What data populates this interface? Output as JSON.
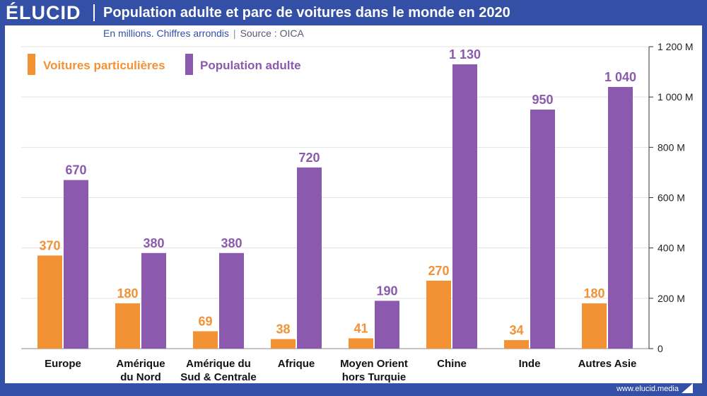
{
  "brand": {
    "logo": "ÉLUCID",
    "url": "www.elucid.media"
  },
  "header": {
    "title": "Population adulte et parc de voitures dans le monde en 2020",
    "subtitle": "En millions. Chiffres arrondis",
    "separator": "|",
    "source": "Source : OICA"
  },
  "colors": {
    "cars": "#f39234",
    "population": "#8b59ad",
    "brand": "#3350a6"
  },
  "chart_data": {
    "type": "bar",
    "title": "Population adulte et parc de voitures dans le monde en 2020",
    "xlabel": "",
    "ylabel": "",
    "ylim": [
      0,
      1200
    ],
    "yticks": [
      0,
      200,
      400,
      600,
      800,
      1000,
      1200
    ],
    "ytick_labels": [
      "0",
      "200 M",
      "400 M",
      "600 M",
      "800 M",
      "1 000 M",
      "1 200 M"
    ],
    "grid": true,
    "legend_position": "top-left",
    "categories": [
      [
        "Europe"
      ],
      [
        "Amérique",
        "du Nord"
      ],
      [
        "Amérique du",
        "Sud & Centrale"
      ],
      [
        "Afrique"
      ],
      [
        "Moyen Orient",
        "hors Turquie"
      ],
      [
        "Chine"
      ],
      [
        "Inde"
      ],
      [
        "Autres Asie"
      ]
    ],
    "series": [
      {
        "name": "Voitures particulières",
        "values": [
          370,
          180,
          69,
          38,
          41,
          270,
          34,
          180
        ],
        "labels": [
          "370",
          "180",
          "69",
          "38",
          "41",
          "270",
          "34",
          "180"
        ]
      },
      {
        "name": "Population adulte",
        "values": [
          670,
          380,
          380,
          720,
          190,
          1130,
          950,
          1040
        ],
        "labels": [
          "670",
          "380",
          "380",
          "720",
          "190",
          "1 130",
          "950",
          "1 040"
        ]
      }
    ]
  }
}
